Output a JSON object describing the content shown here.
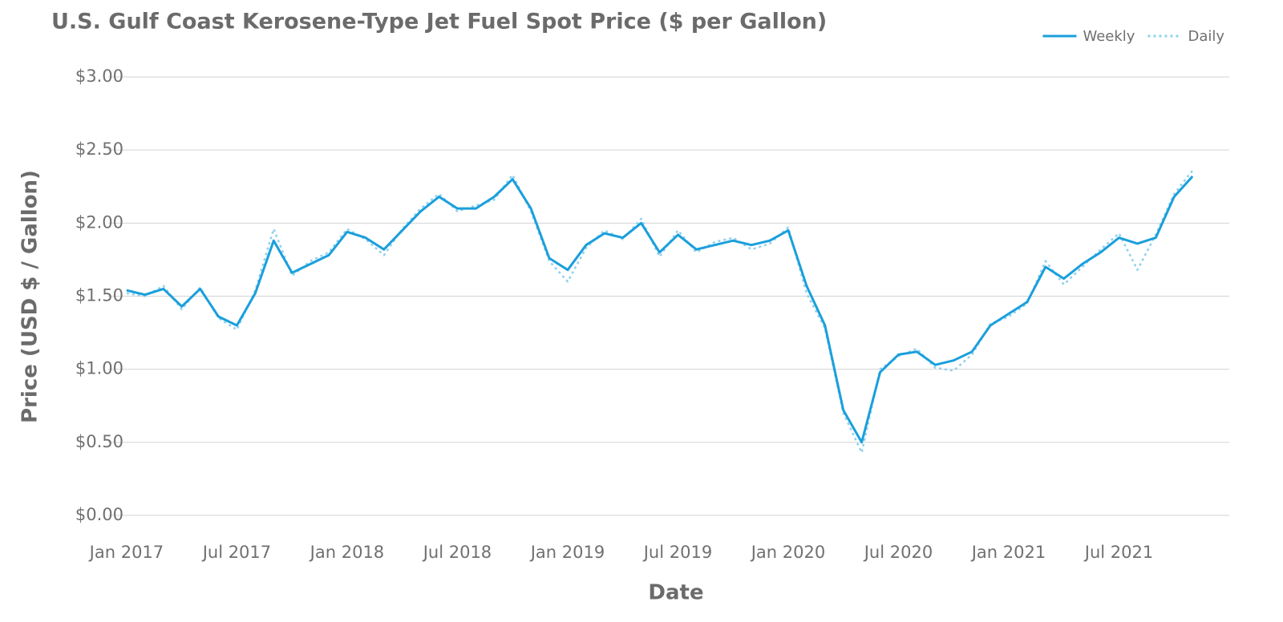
{
  "chart_data": {
    "type": "line",
    "title": "U.S. Gulf Coast Kerosene-Type Jet Fuel Spot Price ($ per Gallon)",
    "x_label": "Date",
    "y_label": "Price (USD $ / Gallon)",
    "x": [
      "2017-01",
      "2017-02",
      "2017-03",
      "2017-04",
      "2017-05",
      "2017-06",
      "2017-07",
      "2017-08",
      "2017-09",
      "2017-10",
      "2017-11",
      "2017-12",
      "2018-01",
      "2018-02",
      "2018-03",
      "2018-04",
      "2018-05",
      "2018-06",
      "2018-07",
      "2018-08",
      "2018-09",
      "2018-10",
      "2018-11",
      "2018-12",
      "2019-01",
      "2019-02",
      "2019-03",
      "2019-04",
      "2019-05",
      "2019-06",
      "2019-07",
      "2019-08",
      "2019-09",
      "2019-10",
      "2019-11",
      "2019-12",
      "2020-01",
      "2020-02",
      "2020-03",
      "2020-04",
      "2020-05",
      "2020-06",
      "2020-07",
      "2020-08",
      "2020-09",
      "2020-10",
      "2020-11",
      "2020-12",
      "2021-01",
      "2021-02",
      "2021-03",
      "2021-04",
      "2021-05",
      "2021-06",
      "2021-07",
      "2021-08",
      "2021-09",
      "2021-10",
      "2021-11"
    ],
    "series": [
      {
        "name": "Weekly",
        "color": "#1a9fdb",
        "style": "solid",
        "values": [
          1.54,
          1.51,
          1.55,
          1.43,
          1.55,
          1.36,
          1.3,
          1.52,
          1.88,
          1.66,
          1.72,
          1.78,
          1.94,
          1.9,
          1.82,
          1.95,
          2.08,
          2.18,
          2.1,
          2.1,
          2.18,
          2.3,
          2.1,
          1.76,
          1.68,
          1.85,
          1.93,
          1.9,
          2.0,
          1.8,
          1.92,
          1.82,
          1.85,
          1.88,
          1.85,
          1.88,
          1.95,
          1.57,
          1.3,
          0.72,
          0.5,
          0.98,
          1.1,
          1.12,
          1.03,
          1.06,
          1.12,
          1.3,
          1.38,
          1.46,
          1.7,
          1.62,
          1.72,
          1.8,
          1.9,
          1.86,
          1.9,
          2.18,
          2.32
        ]
      },
      {
        "name": "Daily",
        "color": "#8fd0ef",
        "style": "dotted",
        "values": [
          1.52,
          1.5,
          1.57,
          1.41,
          1.56,
          1.35,
          1.27,
          1.54,
          1.96,
          1.64,
          1.74,
          1.8,
          1.96,
          1.89,
          1.78,
          1.96,
          2.1,
          2.2,
          2.08,
          2.12,
          2.16,
          2.33,
          2.08,
          1.74,
          1.6,
          1.83,
          1.95,
          1.89,
          2.03,
          1.77,
          1.95,
          1.8,
          1.87,
          1.9,
          1.82,
          1.86,
          1.97,
          1.52,
          1.28,
          0.7,
          0.43,
          1.0,
          1.09,
          1.14,
          1.01,
          0.99,
          1.1,
          1.31,
          1.36,
          1.45,
          1.74,
          1.58,
          1.7,
          1.82,
          1.93,
          1.68,
          1.92,
          2.2,
          2.36
        ]
      }
    ],
    "xlim": [
      "2016-12",
      "2022-01"
    ],
    "xticks": [
      {
        "value": "2017-01",
        "label": "Jan 2017"
      },
      {
        "value": "2017-07",
        "label": "Jul 2017"
      },
      {
        "value": "2018-01",
        "label": "Jan 2018"
      },
      {
        "value": "2018-07",
        "label": "Jul 2018"
      },
      {
        "value": "2019-01",
        "label": "Jan 2019"
      },
      {
        "value": "2019-07",
        "label": "Jul 2019"
      },
      {
        "value": "2020-01",
        "label": "Jan 2020"
      },
      {
        "value": "2020-07",
        "label": "Jul 2020"
      },
      {
        "value": "2021-01",
        "label": "Jan 2021"
      },
      {
        "value": "2021-07",
        "label": "Jul 2021"
      }
    ],
    "ylim": [
      0,
      3
    ],
    "yticks": [
      {
        "value": 0,
        "label": "$0.00"
      },
      {
        "value": 0.5,
        "label": "$0.50"
      },
      {
        "value": 1,
        "label": "$1.00"
      },
      {
        "value": 1.5,
        "label": "$1.50"
      },
      {
        "value": 2,
        "label": "$2.00"
      },
      {
        "value": 2.5,
        "label": "$2.50"
      },
      {
        "value": 3,
        "label": "$3.00"
      }
    ],
    "grid": true,
    "legend": "top-right"
  }
}
